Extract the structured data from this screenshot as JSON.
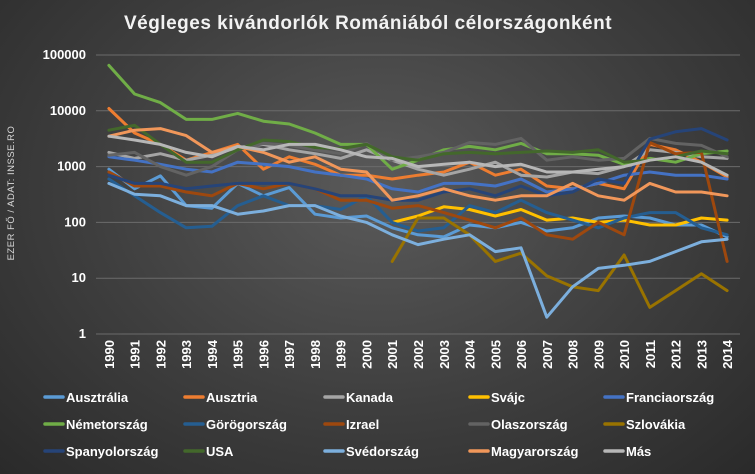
{
  "chart_data": {
    "type": "line",
    "title": "Végleges kivándorlók Romániából célországonként",
    "ylabel": "EZER FŐ / ADAT: INSSE.RO",
    "xlabel": "",
    "yscale": "log",
    "ylim": [
      1,
      100000
    ],
    "ytick_labels": [
      "1",
      "10",
      "100",
      "1000",
      "10000",
      "100000"
    ],
    "grid": true,
    "legend_position": "bottom",
    "categories": [
      "1990",
      "1991",
      "1992",
      "1993",
      "1994",
      "1995",
      "1996",
      "1997",
      "1998",
      "1999",
      "2000",
      "2001",
      "2002",
      "2003",
      "2004",
      "2005",
      "2006",
      "2007",
      "2008",
      "2009",
      "2010",
      "2011",
      "2012",
      "2013",
      "2014"
    ],
    "series": [
      {
        "name": "Ausztrália",
        "color": "#5b9bd5",
        "values": [
          900,
          400,
          680,
          200,
          180,
          500,
          300,
          420,
          140,
          120,
          130,
          80,
          60,
          55,
          90,
          80,
          100,
          70,
          80,
          120,
          130,
          120,
          90,
          90,
          55
        ]
      },
      {
        "name": "Ausztria",
        "color": "#ed7d31",
        "values": [
          11000,
          4000,
          2500,
          1300,
          1800,
          2500,
          900,
          1500,
          1100,
          700,
          700,
          600,
          700,
          800,
          1200,
          700,
          900,
          450,
          400,
          500,
          400,
          2500,
          2000,
          1200,
          650
        ]
      },
      {
        "name": "Kanada",
        "color": "#a5a5a5",
        "values": [
          1800,
          1400,
          1700,
          1300,
          1600,
          2200,
          2500,
          2000,
          1700,
          1400,
          2000,
          1300,
          900,
          700,
          900,
          1200,
          700,
          650,
          800,
          750,
          1000,
          2000,
          1800,
          1500,
          1400
        ]
      },
      {
        "name": "Svájc",
        "color": "#ffc000",
        "values": [
          null,
          null,
          null,
          null,
          null,
          null,
          null,
          null,
          null,
          null,
          null,
          100,
          130,
          190,
          170,
          130,
          170,
          110,
          120,
          100,
          110,
          90,
          90,
          120,
          110
        ]
      },
      {
        "name": "Franciaország",
        "color": "#4472c4",
        "values": [
          1500,
          1300,
          1100,
          900,
          800,
          1200,
          1100,
          1000,
          800,
          700,
          600,
          400,
          350,
          500,
          500,
          450,
          600,
          350,
          400,
          500,
          700,
          800,
          700,
          700,
          600
        ]
      },
      {
        "name": "Németország",
        "color": "#70ad47",
        "values": [
          65000,
          20000,
          14000,
          7000,
          7000,
          9000,
          6500,
          5800,
          4000,
          2500,
          2500,
          900,
          1300,
          2000,
          2300,
          2000,
          2600,
          1700,
          1700,
          1600,
          1100,
          1400,
          1200,
          1700,
          1900
        ]
      },
      {
        "name": "Görögország",
        "color": "#255e91",
        "values": [
          600,
          300,
          150,
          80,
          85,
          200,
          300,
          200,
          200,
          170,
          300,
          100,
          70,
          80,
          200,
          150,
          250,
          150,
          110,
          80,
          120,
          150,
          150,
          80,
          60
        ]
      },
      {
        "name": "Izrael",
        "color": "#9e480e",
        "values": [
          800,
          450,
          450,
          350,
          300,
          500,
          400,
          500,
          400,
          250,
          250,
          180,
          200,
          150,
          110,
          80,
          120,
          60,
          50,
          100,
          60,
          2700,
          1700,
          1800,
          20
        ]
      },
      {
        "name": "Olaszország",
        "color": "#636363",
        "values": [
          1600,
          1800,
          1000,
          700,
          1000,
          2000,
          2600,
          2400,
          2000,
          1700,
          2600,
          1300,
          1500,
          1800,
          2700,
          2500,
          3200,
          1300,
          1500,
          1300,
          1400,
          3200,
          2600,
          2400,
          1500
        ]
      },
      {
        "name": "Szlovákia",
        "color": "#997300",
        "values": [
          null,
          null,
          null,
          null,
          null,
          null,
          null,
          null,
          null,
          null,
          null,
          20,
          120,
          120,
          60,
          20,
          28,
          11,
          7,
          6,
          26,
          3,
          6,
          12,
          6
        ]
      },
      {
        "name": "Spanyolország",
        "color": "#264478",
        "values": [
          700,
          500,
          500,
          400,
          450,
          500,
          500,
          500,
          400,
          300,
          300,
          250,
          250,
          350,
          400,
          300,
          450,
          300,
          350,
          600,
          500,
          3100,
          4200,
          4800,
          3000
        ]
      },
      {
        "name": "USA",
        "color": "#43682b",
        "values": [
          4500,
          5500,
          2500,
          1200,
          1200,
          2000,
          3000,
          2800,
          2200,
          2100,
          2500,
          1500,
          1300,
          1700,
          1800,
          1700,
          1800,
          1900,
          1800,
          2000,
          1200,
          1300,
          1500,
          1900,
          1700
        ]
      },
      {
        "name": "Svédország",
        "color": "#7cafdd",
        "values": [
          500,
          320,
          300,
          200,
          200,
          140,
          160,
          200,
          200,
          130,
          100,
          60,
          40,
          50,
          60,
          30,
          35,
          2,
          7,
          15,
          17,
          20,
          30,
          45,
          50
        ]
      },
      {
        "name": "Magyarország",
        "color": "#f1975a",
        "values": [
          3500,
          4500,
          4800,
          3600,
          1800,
          2300,
          1800,
          1200,
          1500,
          900,
          800,
          250,
          300,
          400,
          300,
          250,
          300,
          300,
          500,
          300,
          250,
          500,
          350,
          350,
          300
        ]
      },
      {
        "name": "Más",
        "color": "#b7b7b7",
        "values": [
          3500,
          3000,
          2500,
          1800,
          1500,
          2300,
          2000,
          2500,
          2500,
          2000,
          1500,
          1400,
          1000,
          1100,
          1200,
          1000,
          1100,
          800,
          800,
          900,
          1000,
          1300,
          1500,
          1200,
          700
        ]
      }
    ]
  }
}
